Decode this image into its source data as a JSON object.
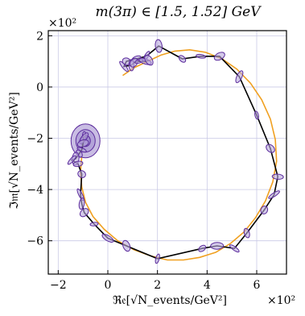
{
  "title": "m(3π) ∈ [1.5, 1.52] GeV",
  "x_multiplier": "×10²",
  "y_multiplier": "×10²",
  "chart_data": {
    "type": "line",
    "title": "m(3π) ∈ [1.5, 1.52] GeV",
    "xlabel": "ℜ𝔢[√N_events/GeV²]",
    "ylabel": "ℑ𝔪[√N_events/GeV²]",
    "x_multiplier": "×10²",
    "y_multiplier": "×10²",
    "xlim": [
      -2.4,
      7.2
    ],
    "ylim": [
      -7.3,
      2.2
    ],
    "xticks": [
      -2,
      0,
      2,
      4,
      6
    ],
    "yticks": [
      -6,
      -4,
      -2,
      0,
      2
    ],
    "xtick_labels": [
      "−2",
      "0",
      "2",
      "4",
      "6"
    ],
    "ytick_labels": [
      "−6",
      "−4",
      "−2",
      "0",
      "2"
    ],
    "grid": true,
    "series": [
      {
        "name": "",
        "color": "#000000",
        "marker": "ellipse",
        "marker_color": "#5b2b9c",
        "x": [
          -0.95,
          -0.97,
          -1.0,
          -1.05,
          -1.15,
          -1.3,
          -1.45,
          -1.2,
          -1.05,
          -1.1,
          -1.05,
          -0.95,
          -0.55,
          0.0,
          0.75,
          2.0,
          3.8,
          4.4,
          5.1,
          5.6,
          6.3,
          6.7,
          6.85,
          6.55,
          6.0,
          5.3,
          4.5,
          3.75,
          3.0,
          2.05,
          1.55,
          1.15,
          0.75,
          0.65,
          0.95,
          1.05,
          1.25,
          1.5,
          1.65
        ],
        "y": [
          -1.9,
          -2.0,
          -2.2,
          -2.45,
          -2.6,
          -2.8,
          -2.85,
          -3.0,
          -3.4,
          -4.2,
          -4.55,
          -4.9,
          -5.35,
          -5.9,
          -6.2,
          -6.7,
          -6.3,
          -6.2,
          -6.3,
          -5.7,
          -4.8,
          -4.2,
          -3.5,
          -2.4,
          -1.1,
          0.4,
          1.2,
          1.2,
          1.1,
          1.6,
          1.2,
          1.1,
          1.0,
          0.8,
          0.85,
          0.95,
          1.0,
          1.0,
          1.05
        ]
      },
      {
        "name": "",
        "color": "#f0a020",
        "marker": "none",
        "x": [
          -0.8,
          -0.95,
          -1.05,
          -1.1,
          -1.05,
          -0.9,
          -0.6,
          -0.15,
          0.4,
          1.05,
          1.75,
          2.4,
          3.05,
          3.7,
          4.35,
          4.95,
          5.5,
          5.95,
          6.35,
          6.65,
          6.8,
          6.75,
          6.55,
          6.2,
          5.75,
          5.2,
          4.6,
          3.95,
          3.3,
          2.7,
          2.15,
          1.6,
          1.05,
          0.6
        ],
        "y": [
          -1.5,
          -2.1,
          -2.7,
          -3.3,
          -3.9,
          -4.5,
          -5.05,
          -5.55,
          -6.0,
          -6.35,
          -6.6,
          -6.75,
          -6.75,
          -6.65,
          -6.45,
          -6.1,
          -5.65,
          -5.1,
          -4.45,
          -3.7,
          -2.9,
          -2.05,
          -1.25,
          -0.5,
          0.15,
          0.7,
          1.1,
          1.35,
          1.45,
          1.4,
          1.25,
          1.0,
          0.75,
          0.45
        ]
      }
    ]
  }
}
